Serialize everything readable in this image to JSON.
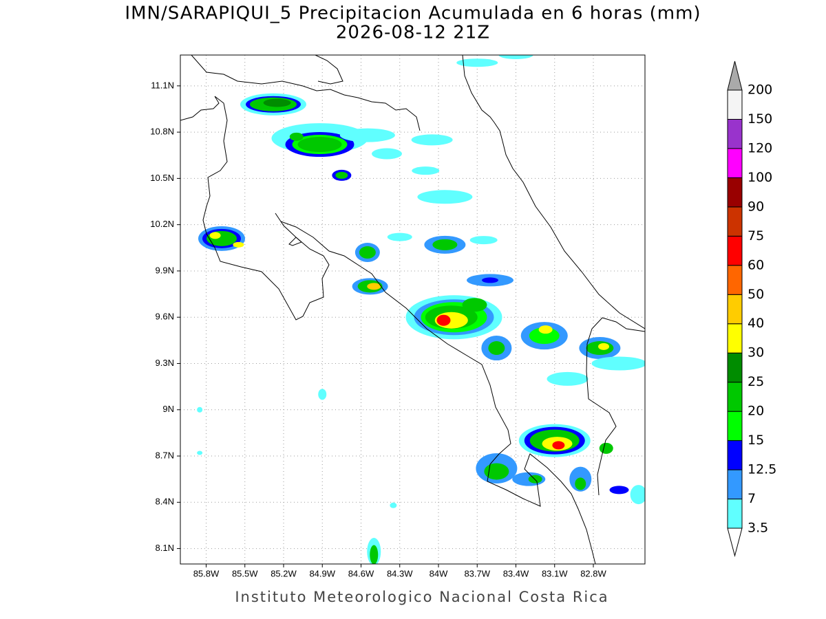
{
  "map": {
    "title": "IMN/SARAPIQUI_5 Precipitacion Acumulada en 6 horas (mm)",
    "subtitle": "2026-08-12 21Z",
    "footer": "Instituto Meteorologico Nacional Costa Rica",
    "xlim": [
      -86.0,
      -82.4
    ],
    "ylim": [
      8.0,
      11.3
    ],
    "xticks": [
      {
        "value": -85.8,
        "label": "85.8W"
      },
      {
        "value": -85.5,
        "label": "85.5W"
      },
      {
        "value": -85.2,
        "label": "85.2W"
      },
      {
        "value": -84.9,
        "label": "84.9W"
      },
      {
        "value": -84.6,
        "label": "84.6W"
      },
      {
        "value": -84.3,
        "label": "84.3W"
      },
      {
        "value": -84.0,
        "label": "84W"
      },
      {
        "value": -83.7,
        "label": "83.7W"
      },
      {
        "value": -83.4,
        "label": "83.4W"
      },
      {
        "value": -83.1,
        "label": "83.1W"
      },
      {
        "value": -82.8,
        "label": "82.8W"
      }
    ],
    "yticks": [
      {
        "value": 8.1,
        "label": "8.1N"
      },
      {
        "value": 8.4,
        "label": "8.4N"
      },
      {
        "value": 8.7,
        "label": "8.7N"
      },
      {
        "value": 9.0,
        "label": "9N"
      },
      {
        "value": 9.3,
        "label": "9.3N"
      },
      {
        "value": 9.6,
        "label": "9.6N"
      },
      {
        "value": 9.9,
        "label": "9.9N"
      },
      {
        "value": 10.2,
        "label": "10.2N"
      },
      {
        "value": 10.5,
        "label": "10.5N"
      },
      {
        "value": 10.8,
        "label": "10.8N"
      },
      {
        "value": 11.1,
        "label": "11.1N"
      }
    ],
    "grid": true,
    "levels": [
      3.5,
      7,
      12.5,
      15,
      20,
      25,
      30,
      40,
      50,
      60,
      75,
      90,
      100,
      120,
      150,
      200
    ],
    "colors": [
      "#60ffff",
      "#3399ff",
      "#0000ff",
      "#00ff00",
      "#00c800",
      "#008c00",
      "#ffff00",
      "#ffcc00",
      "#ff6600",
      "#ff0000",
      "#cc3300",
      "#990000",
      "#ff00ff",
      "#9933cc",
      "#f4f4f4"
    ],
    "under_color": "#ffffff",
    "over_color": "#aaaaaa"
  }
}
